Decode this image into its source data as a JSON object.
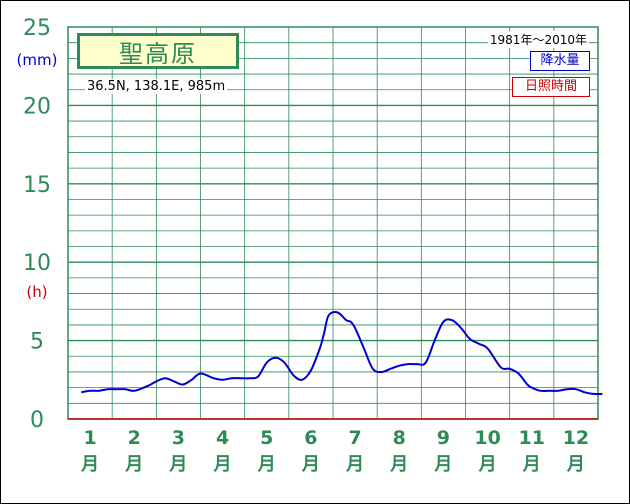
{
  "chart_data": {
    "type": "line",
    "station": "聖高原",
    "location": "36.5N, 138.1E, 985m",
    "period": "1981年〜2010年",
    "y_unit_precip": "(mm)",
    "y_unit_sun": "(h)",
    "yticks": [
      "0",
      "5",
      "10",
      "15",
      "20",
      "25"
    ],
    "ylim": [
      0,
      25
    ],
    "x_months": [
      "1",
      "2",
      "3",
      "4",
      "5",
      "6",
      "7",
      "8",
      "9",
      "10",
      "11",
      "12"
    ],
    "x_month_unit": "月",
    "legend": {
      "precip": "降水量",
      "sun": "日照時間"
    },
    "series": [
      {
        "name": "降水量",
        "color": "#0000cc",
        "x": [
          0.8,
          1.0,
          1.2,
          1.4,
          1.6,
          1.8,
          2.0,
          2.3,
          2.5,
          2.7,
          2.9,
          3.1,
          3.3,
          3.5,
          3.8,
          4.0,
          4.2,
          4.4,
          4.6,
          4.8,
          5.0,
          5.2,
          5.4,
          5.6,
          5.8,
          6.0,
          6.2,
          6.3,
          6.4,
          6.6,
          6.8,
          6.9,
          7.0,
          7.2,
          7.4,
          7.6,
          7.8,
          8.0,
          8.2,
          8.4,
          8.6,
          8.8,
          9.0,
          9.2,
          9.4,
          9.6,
          9.8,
          10.0,
          10.3,
          10.5,
          10.7,
          10.9,
          11.0,
          11.2,
          11.4,
          11.6,
          11.8,
          12.0,
          12.2,
          12.4,
          12.6
        ],
        "values": [
          1.7,
          1.8,
          1.8,
          1.9,
          1.9,
          1.9,
          1.8,
          2.1,
          2.4,
          2.6,
          2.4,
          2.2,
          2.5,
          2.9,
          2.6,
          2.5,
          2.6,
          2.6,
          2.6,
          2.7,
          3.6,
          3.9,
          3.6,
          2.8,
          2.5,
          3.1,
          4.5,
          5.5,
          6.6,
          6.8,
          6.3,
          6.2,
          5.8,
          4.5,
          3.2,
          3.0,
          3.2,
          3.4,
          3.5,
          3.5,
          3.6,
          5.0,
          6.2,
          6.3,
          5.8,
          5.1,
          4.8,
          4.5,
          3.3,
          3.2,
          2.9,
          2.2,
          2.0,
          1.8,
          1.8,
          1.8,
          1.9,
          1.9,
          1.7,
          1.6,
          1.6
        ]
      }
    ]
  }
}
